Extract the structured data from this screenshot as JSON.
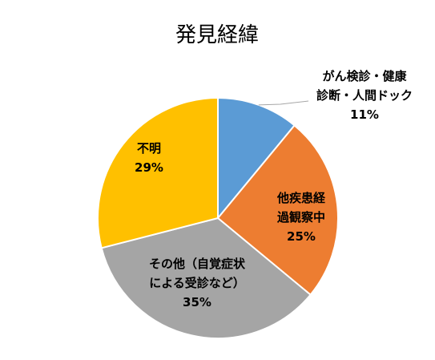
{
  "chart_data": {
    "type": "pie",
    "title": "発見経緯",
    "slices": [
      {
        "label_lines": [
          "がん検診・健康",
          "診断・人間ドック"
        ],
        "value": 11,
        "value_label": "11%",
        "color": "#5B9BD5"
      },
      {
        "label_lines": [
          "他疾患経",
          "過観察中"
        ],
        "value": 25,
        "value_label": "25%",
        "color": "#ED7D31"
      },
      {
        "label_lines": [
          "その他（自覚症状",
          "による受診など）"
        ],
        "value": 35,
        "value_label": "35%",
        "color": "#A5A5A5"
      },
      {
        "label_lines": [
          "不明"
        ],
        "value": 29,
        "value_label": "29%",
        "color": "#FFC000"
      }
    ],
    "legend": "none"
  }
}
